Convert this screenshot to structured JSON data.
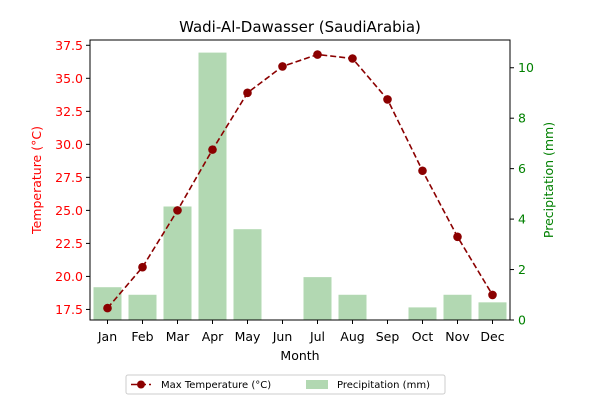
{
  "chart_data": {
    "type": "bar",
    "title": "Wadi-Al-Dawasser (SaudiArabia)",
    "xlabel": "Month",
    "categories": [
      "Jan",
      "Feb",
      "Mar",
      "Apr",
      "May",
      "Jun",
      "Jul",
      "Aug",
      "Sep",
      "Oct",
      "Nov",
      "Dec"
    ],
    "left_axis": {
      "label": "Temperature (°C)",
      "color": "#ff0000",
      "ylim": [
        16.7,
        37.9
      ],
      "ticks": [
        "17.5",
        "20.0",
        "22.5",
        "25.0",
        "27.5",
        "30.0",
        "32.5",
        "35.0",
        "37.5"
      ],
      "tick_values": [
        17.5,
        20.0,
        22.5,
        25.0,
        27.5,
        30.0,
        32.5,
        35.0,
        37.5
      ]
    },
    "right_axis": {
      "label": "Precipitation (mm)",
      "color": "#008000",
      "ylim": [
        0,
        11.1
      ],
      "ticks": [
        "0",
        "2",
        "4",
        "6",
        "8",
        "10"
      ],
      "tick_values": [
        0,
        2,
        4,
        6,
        8,
        10
      ]
    },
    "series": [
      {
        "name": "Max Temperature (°C)",
        "type": "line",
        "axis": "left",
        "style": "dashed",
        "marker": "circle",
        "color": "#8b0000",
        "values": [
          17.6,
          20.7,
          25.0,
          29.6,
          33.9,
          35.9,
          36.8,
          36.5,
          33.4,
          28.0,
          23.0,
          18.6
        ]
      },
      {
        "name": "Precipitation (mm)",
        "type": "bar",
        "axis": "right",
        "color": "#b2d8b2",
        "values": [
          1.3,
          1.0,
          4.5,
          10.6,
          3.6,
          0.0,
          1.7,
          1.0,
          0.0,
          0.5,
          1.0,
          0.7
        ]
      }
    ],
    "legend": {
      "placement": "bottom-center",
      "columns": 2
    },
    "grid": false
  }
}
